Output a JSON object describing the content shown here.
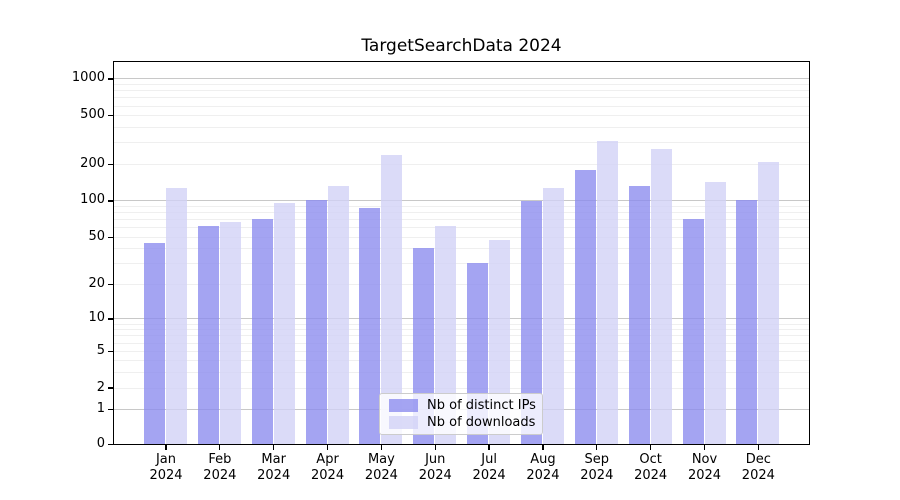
{
  "chart_data": {
    "type": "bar",
    "title": "TargetSearchData 2024",
    "categories": [
      "Jan",
      "Feb",
      "Mar",
      "Apr",
      "May",
      "Jun",
      "Jul",
      "Aug",
      "Sep",
      "Oct",
      "Nov",
      "Dec"
    ],
    "category_year": "2024",
    "series": [
      {
        "name": "Nb of distinct IPs",
        "color": "#8a8aee",
        "values": [
          45,
          63,
          71,
          103,
          89,
          41,
          31,
          100,
          180,
          135,
          71,
          102
        ]
      },
      {
        "name": "Nb of downloads",
        "color": "#d1d1f6",
        "values": [
          128,
          68,
          98,
          134,
          240,
          63,
          48,
          130,
          315,
          268,
          144,
          210
        ]
      }
    ],
    "yscale": "log1p",
    "yticks": [
      1000,
      500,
      200,
      100,
      50,
      20,
      10,
      5,
      2,
      1,
      0
    ],
    "ylim": [
      0,
      1400
    ],
    "xlabel": "",
    "ylabel": "",
    "grid": {
      "major_lines_at": [
        1,
        10,
        100,
        1000
      ],
      "minor_multiples_per_decade": [
        2,
        3,
        4,
        5,
        6,
        7,
        8,
        9
      ],
      "major_color": "#c8c8c8",
      "minor_color": "#efefef"
    },
    "legend": {
      "position": "lower center"
    }
  }
}
